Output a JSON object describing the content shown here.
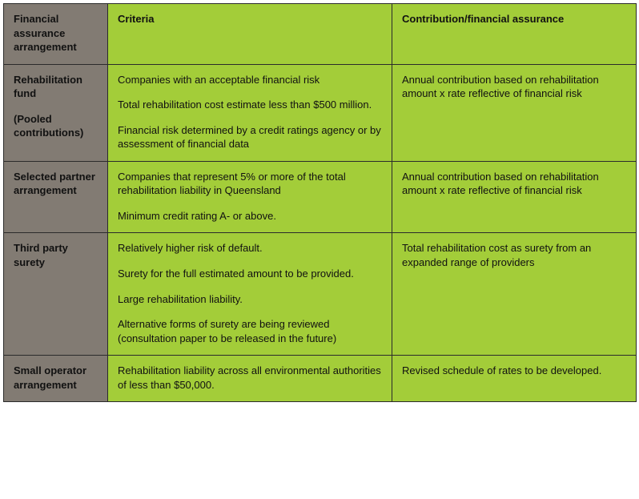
{
  "colors": {
    "row_label_bg": "#827b73",
    "body_bg": "#a3cd39",
    "border": "#2b2b2b",
    "text": "#111111"
  },
  "header": {
    "col_a": "Financial assurance arrangement",
    "col_b": "Criteria",
    "col_c": "Contribution/financial assurance"
  },
  "rows": [
    {
      "label_lines": [
        "Rehabilitation fund",
        "",
        "(Pooled contributions)"
      ],
      "criteria": [
        "Companies with an acceptable financial risk",
        "Total rehabilitation cost estimate less than $500 million.",
        "Financial risk determined by a credit ratings agency or by assessment of financial data"
      ],
      "contribution": [
        "Annual contribution based on rehabilitation amount x rate reflective of financial risk"
      ]
    },
    {
      "label_lines": [
        "Selected partner arrangement"
      ],
      "criteria": [
        "Companies that represent 5% or more of the total rehabilitation liability in Queensland",
        "Minimum credit rating A- or above."
      ],
      "contribution": [
        "Annual contribution based on rehabilitation amount x rate reflective of financial risk"
      ]
    },
    {
      "label_lines": [
        "Third party surety"
      ],
      "criteria": [
        "Relatively higher risk of default.",
        "Surety for the full estimated amount to be provided.",
        "Large rehabilitation liability.",
        "Alternative forms of surety are being reviewed (consultation paper to be released in the future)"
      ],
      "contribution": [
        "Total rehabilitation cost as surety from an expanded range of providers"
      ]
    },
    {
      "label_lines": [
        "Small operator arrangement"
      ],
      "criteria": [
        "Rehabilitation liability across all environmental authorities of less than $50,000."
      ],
      "contribution": [
        "Revised schedule of rates to be developed."
      ]
    }
  ]
}
